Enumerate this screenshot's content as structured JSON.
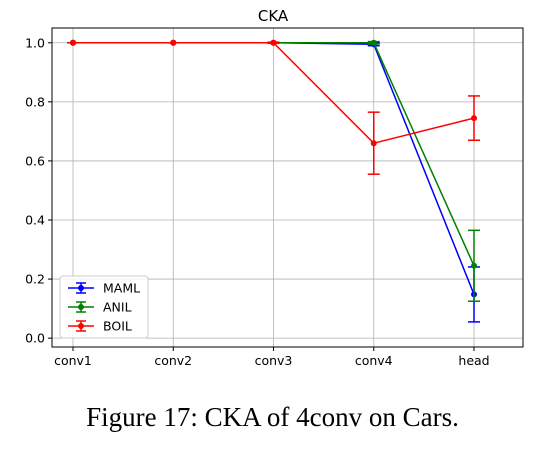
{
  "caption": "Figure 17: CKA of 4conv on Cars.",
  "chart_data": {
    "type": "line",
    "title": "CKA",
    "xlabel": "",
    "ylabel": "",
    "categories": [
      "conv1",
      "conv2",
      "conv3",
      "conv4",
      "head"
    ],
    "ylim": [
      -0.03,
      1.05
    ],
    "yticks": [
      0.0,
      0.2,
      0.4,
      0.6,
      0.8,
      1.0
    ],
    "ytick_labels": [
      "0.0",
      "0.2",
      "0.4",
      "0.6",
      "0.8",
      "1.0"
    ],
    "grid": true,
    "legend_position": "lower-left",
    "series": [
      {
        "name": "MAML",
        "color": "#0000ff",
        "values": [
          1.0,
          1.0,
          1.0,
          0.995,
          0.148
        ],
        "errors": [
          0,
          0,
          0,
          0.005,
          0.093
        ]
      },
      {
        "name": "ANIL",
        "color": "#008000",
        "values": [
          1.0,
          1.0,
          1.0,
          1.0,
          0.245
        ],
        "errors": [
          0,
          0,
          0,
          0.004,
          0.12
        ]
      },
      {
        "name": "BOIL",
        "color": "#ff0000",
        "values": [
          1.0,
          1.0,
          1.0,
          0.66,
          0.745
        ],
        "errors": [
          0,
          0,
          0.002,
          0.105,
          0.075
        ]
      }
    ]
  }
}
